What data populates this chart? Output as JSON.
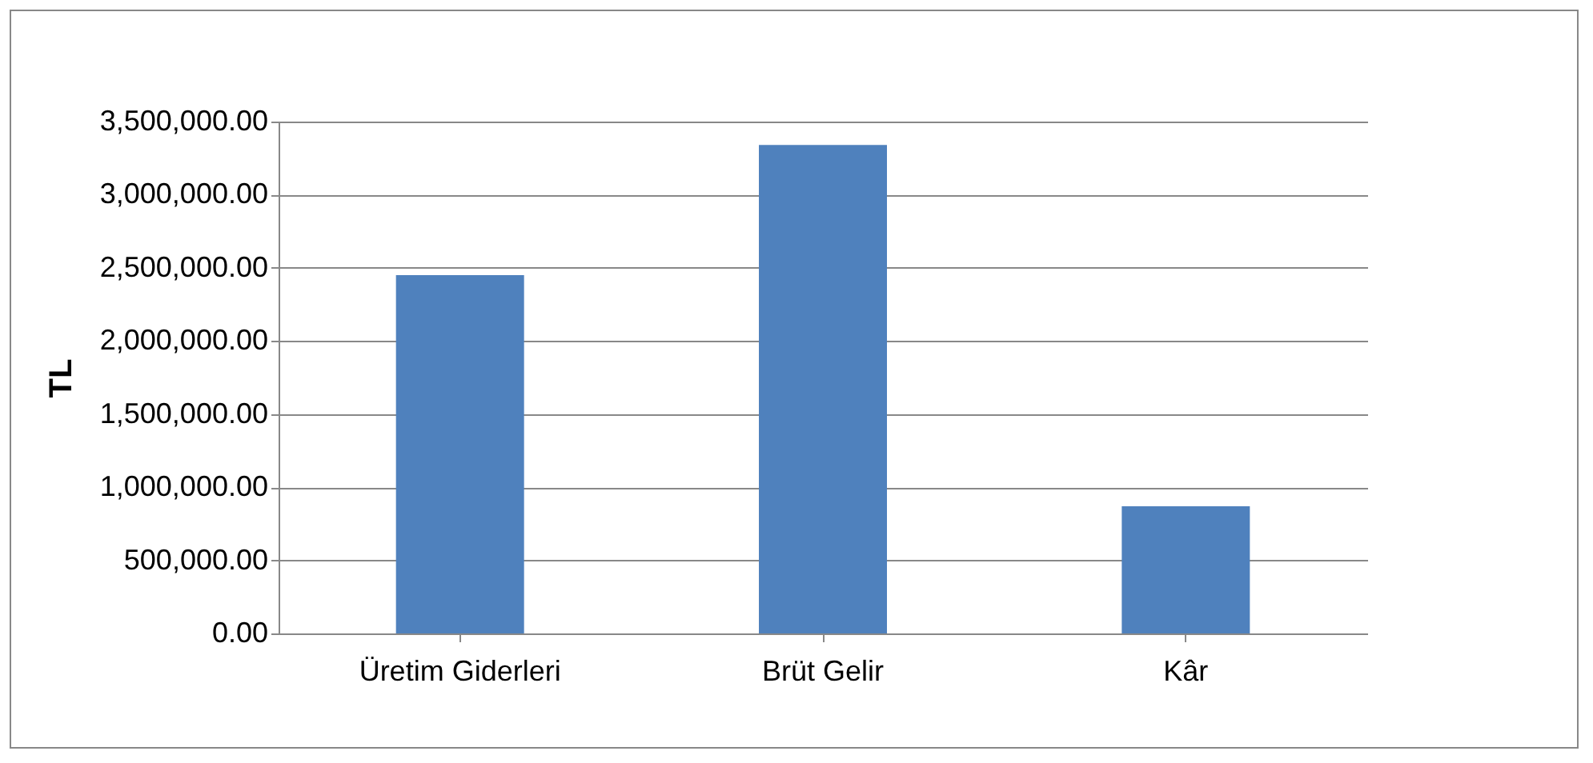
{
  "chart_data": {
    "type": "bar",
    "ylabel": "TL",
    "categories": [
      "Üretim Giderleri",
      "Brüt Gelir",
      "Kâr"
    ],
    "values": [
      2450000,
      3340000,
      870000
    ],
    "color": "#4f81bd",
    "ylim": [
      0,
      3500000
    ],
    "yticks": [
      {
        "value": 0,
        "label": "0.00"
      },
      {
        "value": 500000,
        "label": "500,000.00"
      },
      {
        "value": 1000000,
        "label": "1,000,000.00"
      },
      {
        "value": 1500000,
        "label": "1,500,000.00"
      },
      {
        "value": 2000000,
        "label": "2,000,000.00"
      },
      {
        "value": 2500000,
        "label": "2,500,000.00"
      },
      {
        "value": 3000000,
        "label": "3,000,000.00"
      },
      {
        "value": 3500000,
        "label": "3,500,000.00"
      }
    ],
    "grid": true
  }
}
